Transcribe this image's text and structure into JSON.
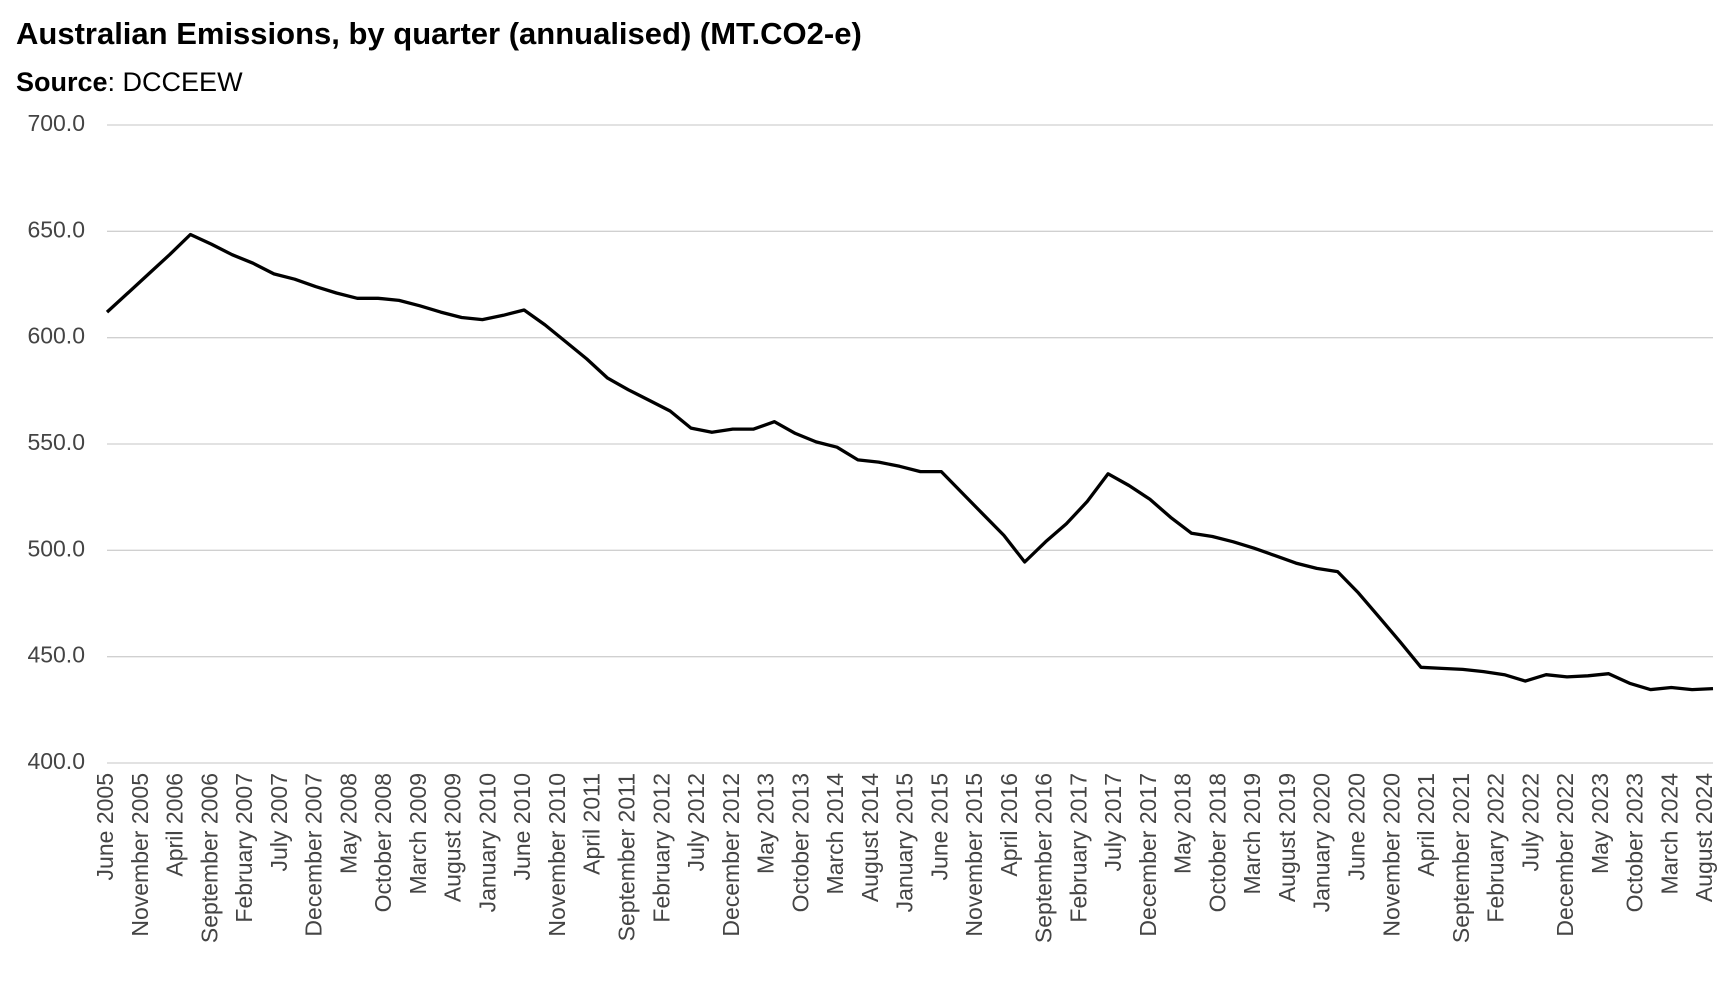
{
  "chart_data": {
    "type": "line",
    "title": "Australian Emissions, by quarter (annualised) (MT.CO2-e)",
    "subtitle": [
      "Source",
      ": DCCEEW"
    ],
    "x": [
      "2005-06",
      "2005-09",
      "2005-12",
      "2006-03",
      "2006-06",
      "2006-09",
      "2006-12",
      "2007-03",
      "2007-06",
      "2007-09",
      "2007-12",
      "2008-03",
      "2008-06",
      "2008-09",
      "2008-12",
      "2009-03",
      "2009-06",
      "2009-09",
      "2009-12",
      "2010-03",
      "2010-06",
      "2010-09",
      "2010-12",
      "2011-03",
      "2011-06",
      "2011-09",
      "2011-12",
      "2012-03",
      "2012-06",
      "2012-09",
      "2012-12",
      "2013-03",
      "2013-06",
      "2013-09",
      "2013-12",
      "2014-03",
      "2014-06",
      "2014-09",
      "2014-12",
      "2015-03",
      "2015-06",
      "2015-09",
      "2015-12",
      "2016-03",
      "2016-06",
      "2016-09",
      "2016-12",
      "2017-03",
      "2017-06",
      "2017-09",
      "2017-12",
      "2018-03",
      "2018-06",
      "2018-09",
      "2018-12",
      "2019-03",
      "2019-06",
      "2019-09",
      "2019-12",
      "2020-03",
      "2020-06",
      "2020-09",
      "2020-12",
      "2021-03",
      "2021-06",
      "2021-09",
      "2021-12",
      "2022-03",
      "2022-06",
      "2022-09",
      "2022-12",
      "2023-03",
      "2023-06",
      "2023-09",
      "2023-12",
      "2024-03",
      "2024-06",
      "2024-09"
    ],
    "series": [
      {
        "name": "Emissions",
        "color": "#000000",
        "values": [
          612,
          621,
          630,
          639,
          648.5,
          644,
          639,
          635,
          630,
          627.5,
          624,
          621,
          618.5,
          618.5,
          617.5,
          615,
          612,
          609.5,
          608.5,
          610.5,
          613,
          606,
          598,
          590,
          581,
          575.5,
          570.5,
          565.5,
          557.5,
          555.5,
          557,
          557,
          560.5,
          555,
          551,
          548.5,
          542.5,
          541.5,
          539.5,
          537,
          537,
          527,
          517,
          507,
          494.5,
          504,
          512.5,
          523,
          536,
          530.5,
          524,
          515.5,
          508,
          506.5,
          504,
          501,
          497.5,
          494,
          491.5,
          490,
          480,
          468.5,
          457,
          445,
          444.5,
          444,
          443,
          441.5,
          438.5,
          441.5,
          440.5,
          441,
          442,
          437.5,
          434.5,
          435.5,
          434.5,
          435
        ]
      }
    ],
    "xlim": [
      "2005-06",
      "2024-09"
    ],
    "xticks": [
      {
        "value": "2005-06",
        "label": "June 2005"
      },
      {
        "value": "2005-11",
        "label": "November 2005"
      },
      {
        "value": "2006-04",
        "label": "April 2006"
      },
      {
        "value": "2006-09",
        "label": "September 2006"
      },
      {
        "value": "2007-02",
        "label": "February 2007"
      },
      {
        "value": "2007-07",
        "label": "July 2007"
      },
      {
        "value": "2007-12",
        "label": "December 2007"
      },
      {
        "value": "2008-05",
        "label": "May 2008"
      },
      {
        "value": "2008-10",
        "label": "October 2008"
      },
      {
        "value": "2009-03",
        "label": "March 2009"
      },
      {
        "value": "2009-08",
        "label": "August 2009"
      },
      {
        "value": "2010-01",
        "label": "January 2010"
      },
      {
        "value": "2010-06",
        "label": "June 2010"
      },
      {
        "value": "2010-11",
        "label": "November 2010"
      },
      {
        "value": "2011-04",
        "label": "April 2011"
      },
      {
        "value": "2011-09",
        "label": "September 2011"
      },
      {
        "value": "2012-02",
        "label": "February 2012"
      },
      {
        "value": "2012-07",
        "label": "July 2012"
      },
      {
        "value": "2012-12",
        "label": "December 2012"
      },
      {
        "value": "2013-05",
        "label": "May 2013"
      },
      {
        "value": "2013-10",
        "label": "October 2013"
      },
      {
        "value": "2014-03",
        "label": "March 2014"
      },
      {
        "value": "2014-08",
        "label": "August 2014"
      },
      {
        "value": "2015-01",
        "label": "January 2015"
      },
      {
        "value": "2015-06",
        "label": "June 2015"
      },
      {
        "value": "2015-11",
        "label": "November 2015"
      },
      {
        "value": "2016-04",
        "label": "April 2016"
      },
      {
        "value": "2016-09",
        "label": "September 2016"
      },
      {
        "value": "2017-02",
        "label": "February 2017"
      },
      {
        "value": "2017-07",
        "label": "July 2017"
      },
      {
        "value": "2017-12",
        "label": "December 2017"
      },
      {
        "value": "2018-05",
        "label": "May 2018"
      },
      {
        "value": "2018-10",
        "label": "October 2018"
      },
      {
        "value": "2019-03",
        "label": "March 2019"
      },
      {
        "value": "2019-08",
        "label": "August 2019"
      },
      {
        "value": "2020-01",
        "label": "January 2020"
      },
      {
        "value": "2020-06",
        "label": "June 2020"
      },
      {
        "value": "2020-11",
        "label": "November 2020"
      },
      {
        "value": "2021-04",
        "label": "April 2021"
      },
      {
        "value": "2021-09",
        "label": "September 2021"
      },
      {
        "value": "2022-02",
        "label": "February 2022"
      },
      {
        "value": "2022-07",
        "label": "July 2022"
      },
      {
        "value": "2022-12",
        "label": "December 2022"
      },
      {
        "value": "2023-05",
        "label": "May 2023"
      },
      {
        "value": "2023-10",
        "label": "October 2023"
      },
      {
        "value": "2024-03",
        "label": "March 2024"
      },
      {
        "value": "2024-08",
        "label": "August 2024"
      }
    ],
    "ylim": [
      400,
      700
    ],
    "yticks": [
      {
        "value": 400,
        "label": "400.0"
      },
      {
        "value": 450,
        "label": "450.0"
      },
      {
        "value": 500,
        "label": "500.0"
      },
      {
        "value": 550,
        "label": "550.0"
      },
      {
        "value": 600,
        "label": "600.0"
      },
      {
        "value": 650,
        "label": "650.0"
      },
      {
        "value": 700,
        "label": "700.0"
      }
    ],
    "grid": true
  }
}
